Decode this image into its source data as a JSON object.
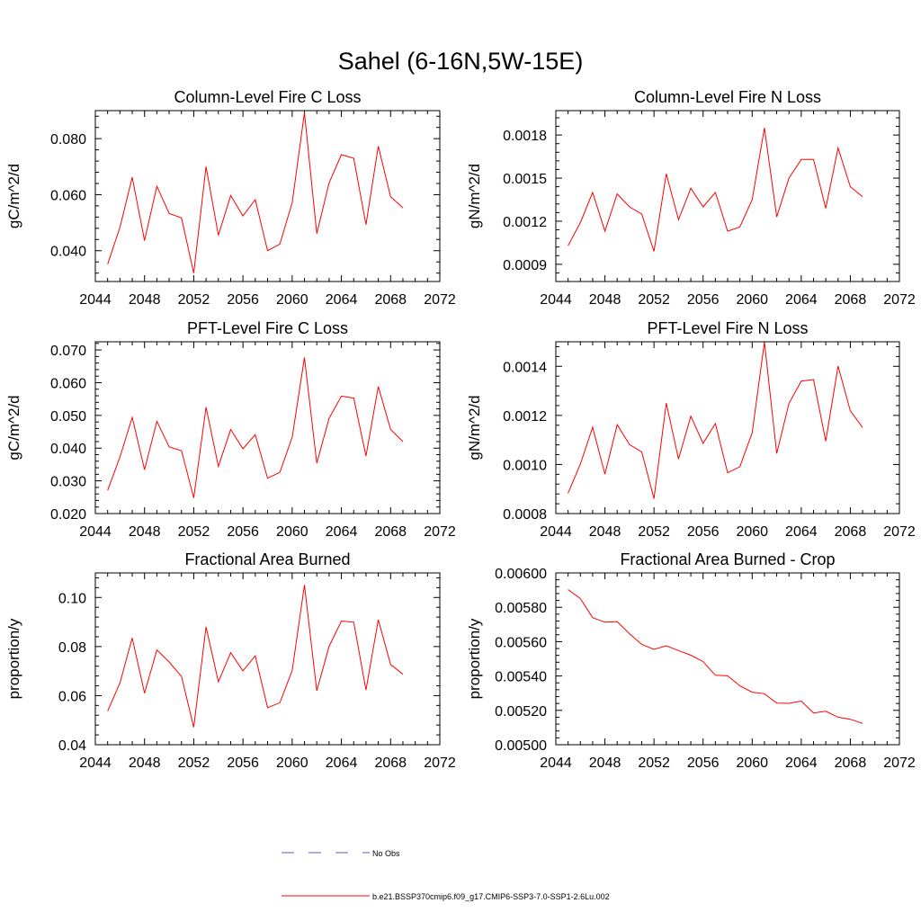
{
  "figure": {
    "title": "Sahel (6-16N,5W-15E)"
  },
  "legend": [
    {
      "label": "No Obs",
      "color": "#5a5acd",
      "dash": "dashed"
    },
    {
      "label": "b.e21.BSSP370cmip6.f09_g17.CMIP6-SSP3-7.0-SSP1-2.6Lu.002",
      "color": "#ff0000",
      "dash": "solid"
    }
  ],
  "chart_data": [
    {
      "type": "line",
      "title": "Column-Level Fire C Loss",
      "ylabel": "gC/m^2/d",
      "xlabel": "",
      "xlim": [
        2044,
        2072
      ],
      "ylim": [
        0.029,
        0.09
      ],
      "xticks": [
        "2044",
        "2048",
        "2052",
        "2056",
        "2060",
        "2064",
        "2068",
        "2072"
      ],
      "yticks": [
        "0.040",
        "0.060",
        "0.080"
      ],
      "x": [
        2045,
        2046,
        2047,
        2048,
        2049,
        2050,
        2051,
        2052,
        2053,
        2054,
        2055,
        2056,
        2057,
        2058,
        2059,
        2060,
        2061,
        2062,
        2063,
        2064,
        2065,
        2066,
        2067,
        2068,
        2069
      ],
      "series": [
        {
          "color": "#ff0000",
          "values": [
            0.0352,
            0.0484,
            0.0662,
            0.0436,
            0.063,
            0.0533,
            0.0517,
            0.032,
            0.07,
            0.0455,
            0.0597,
            0.0524,
            0.0582,
            0.04,
            0.0424,
            0.0572,
            0.0893,
            0.0461,
            0.0642,
            0.0743,
            0.073,
            0.0493,
            0.0773,
            0.0593,
            0.0553
          ]
        }
      ]
    },
    {
      "type": "line",
      "title": "Column-Level Fire N Loss",
      "ylabel": "gN/m^2/d",
      "xlabel": "",
      "xlim": [
        2044,
        2072
      ],
      "ylim": [
        0.00078,
        0.00197
      ],
      "xticks": [
        "2044",
        "2048",
        "2052",
        "2056",
        "2060",
        "2064",
        "2068",
        "2072"
      ],
      "yticks": [
        "0.0009",
        "0.0012",
        "0.0015",
        "0.0018"
      ],
      "x": [
        2045,
        2046,
        2047,
        2048,
        2049,
        2050,
        2051,
        2052,
        2053,
        2054,
        2055,
        2056,
        2057,
        2058,
        2059,
        2060,
        2061,
        2062,
        2063,
        2064,
        2065,
        2066,
        2067,
        2068,
        2069
      ],
      "series": [
        {
          "color": "#ff0000",
          "values": [
            0.00103,
            0.00119,
            0.0014,
            0.00113,
            0.00139,
            0.0013,
            0.00125,
            0.00099,
            0.00153,
            0.00121,
            0.00143,
            0.0013,
            0.0014,
            0.00113,
            0.00116,
            0.00135,
            0.00185,
            0.00123,
            0.0015,
            0.00163,
            0.00163,
            0.00129,
            0.00171,
            0.00144,
            0.00137
          ]
        }
      ]
    },
    {
      "type": "line",
      "title": "PFT-Level Fire C Loss",
      "ylabel": "gC/m^2/d",
      "xlabel": "",
      "xlim": [
        2044,
        2072
      ],
      "ylim": [
        0.02,
        0.0725
      ],
      "xticks": [
        "2044",
        "2048",
        "2052",
        "2056",
        "2060",
        "2064",
        "2068",
        "2072"
      ],
      "yticks": [
        "0.020",
        "0.030",
        "0.040",
        "0.050",
        "0.060",
        "0.070"
      ],
      "x": [
        2045,
        2046,
        2047,
        2048,
        2049,
        2050,
        2051,
        2052,
        2053,
        2054,
        2055,
        2056,
        2057,
        2058,
        2059,
        2060,
        2061,
        2062,
        2063,
        2064,
        2065,
        2066,
        2067,
        2068,
        2069
      ],
      "series": [
        {
          "color": "#ff0000",
          "values": [
            0.0271,
            0.0373,
            0.0494,
            0.0334,
            0.0482,
            0.0404,
            0.0392,
            0.0248,
            0.0525,
            0.0344,
            0.0457,
            0.0398,
            0.0441,
            0.0308,
            0.0326,
            0.0434,
            0.0677,
            0.0354,
            0.0491,
            0.0559,
            0.0553,
            0.0376,
            0.0588,
            0.0457,
            0.042
          ]
        }
      ]
    },
    {
      "type": "line",
      "title": "PFT-Level Fire N Loss",
      "ylabel": "gN/m^2/d",
      "xlabel": "",
      "xlim": [
        2044,
        2072
      ],
      "ylim": [
        0.0008,
        0.0015
      ],
      "xticks": [
        "2044",
        "2048",
        "2052",
        "2056",
        "2060",
        "2064",
        "2068",
        "2072"
      ],
      "yticks": [
        "0.0008",
        "0.0010",
        "0.0012",
        "0.0014"
      ],
      "x": [
        2045,
        2046,
        2047,
        2048,
        2049,
        2050,
        2051,
        2052,
        2053,
        2054,
        2055,
        2056,
        2057,
        2058,
        2059,
        2060,
        2061,
        2062,
        2063,
        2064,
        2065,
        2066,
        2067,
        2068,
        2069
      ],
      "series": [
        {
          "color": "#ff0000",
          "values": [
            0.000883,
            0.001002,
            0.001152,
            0.00096,
            0.001162,
            0.001081,
            0.001051,
            0.000861,
            0.00125,
            0.001022,
            0.001197,
            0.001086,
            0.001167,
            0.000966,
            0.000991,
            0.001129,
            0.001498,
            0.001045,
            0.001249,
            0.00134,
            0.001346,
            0.001095,
            0.001401,
            0.001219,
            0.00115
          ]
        }
      ]
    },
    {
      "type": "line",
      "title": "Fractional Area Burned",
      "ylabel": "proportion/y",
      "xlabel": "",
      "xlim": [
        2044,
        2072
      ],
      "ylim": [
        0.04,
        0.11
      ],
      "xticks": [
        "2044",
        "2048",
        "2052",
        "2056",
        "2060",
        "2064",
        "2068",
        "2072"
      ],
      "yticks": [
        "0.04",
        "0.06",
        "0.08",
        "0.10"
      ],
      "x": [
        2045,
        2046,
        2047,
        2048,
        2049,
        2050,
        2051,
        2052,
        2053,
        2054,
        2055,
        2056,
        2057,
        2058,
        2059,
        2060,
        2061,
        2062,
        2063,
        2064,
        2065,
        2066,
        2067,
        2068,
        2069
      ],
      "series": [
        {
          "color": "#ff0000",
          "values": [
            0.0537,
            0.0652,
            0.0835,
            0.061,
            0.0786,
            0.0737,
            0.0678,
            0.0471,
            0.088,
            0.0656,
            0.0775,
            0.0701,
            0.0762,
            0.0551,
            0.0571,
            0.0703,
            0.1051,
            0.062,
            0.0801,
            0.0904,
            0.0899,
            0.0623,
            0.0909,
            0.0727,
            0.0687
          ]
        }
      ]
    },
    {
      "type": "line",
      "title": "Fractional Area Burned - Crop",
      "ylabel": "proportion/y",
      "xlabel": "",
      "xlim": [
        2044,
        2072
      ],
      "ylim": [
        0.005,
        0.006
      ],
      "xticks": [
        "2044",
        "2048",
        "2052",
        "2056",
        "2060",
        "2064",
        "2068",
        "2072"
      ],
      "yticks": [
        "0.00500",
        "0.00520",
        "0.00540",
        "0.00560",
        "0.00580",
        "0.00600"
      ],
      "x": [
        2045,
        2046,
        2047,
        2048,
        2049,
        2050,
        2051,
        2052,
        2053,
        2054,
        2055,
        2056,
        2057,
        2058,
        2059,
        2060,
        2061,
        2062,
        2063,
        2064,
        2065,
        2066,
        2067,
        2068,
        2069
      ],
      "series": [
        {
          "color": "#ff0000",
          "values": [
            0.005903,
            0.005851,
            0.00574,
            0.005713,
            0.005717,
            0.005646,
            0.005584,
            0.005555,
            0.005576,
            0.005548,
            0.005521,
            0.005484,
            0.005404,
            0.005401,
            0.005343,
            0.005306,
            0.005297,
            0.005242,
            0.005241,
            0.005254,
            0.005185,
            0.005195,
            0.00516,
            0.005148,
            0.005124
          ]
        }
      ]
    }
  ]
}
